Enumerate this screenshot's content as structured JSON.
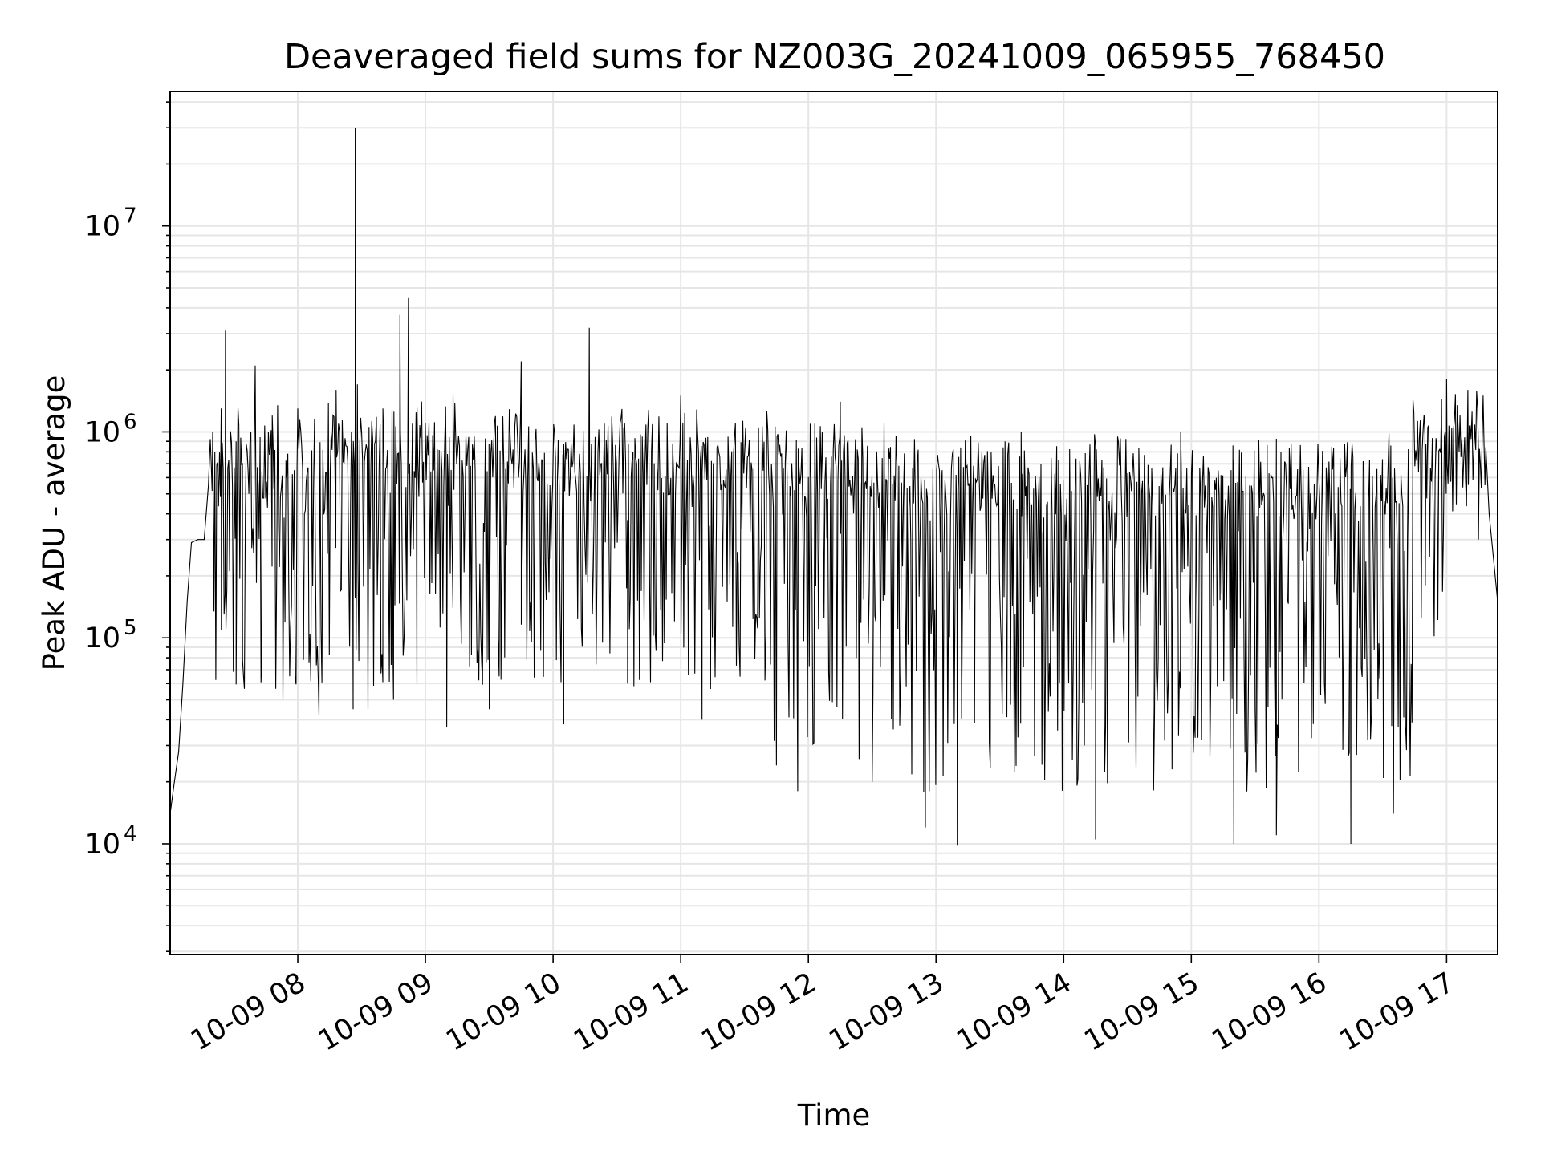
{
  "chart_data": {
    "type": "line",
    "title": "Deaveraged field sums for NZ003G_20241009_065955_768450",
    "xlabel": "Time",
    "ylabel": "Peak ADU - average",
    "yscale": "log",
    "xlim": [
      "2024-10-09 07:00",
      "2024-10-09 17:24"
    ],
    "ylim": [
      2900,
      45000000
    ],
    "grid": true,
    "line_color": "#000000",
    "grid_color": "#e6e6e6",
    "x_ticks": [
      {
        "t": "2024-10-09 08:00",
        "label": "10-09 08"
      },
      {
        "t": "2024-10-09 09:00",
        "label": "10-09 09"
      },
      {
        "t": "2024-10-09 10:00",
        "label": "10-09 10"
      },
      {
        "t": "2024-10-09 11:00",
        "label": "10-09 11"
      },
      {
        "t": "2024-10-09 12:00",
        "label": "10-09 12"
      },
      {
        "t": "2024-10-09 13:00",
        "label": "10-09 13"
      },
      {
        "t": "2024-10-09 14:00",
        "label": "10-09 14"
      },
      {
        "t": "2024-10-09 15:00",
        "label": "10-09 15"
      },
      {
        "t": "2024-10-09 16:00",
        "label": "10-09 16"
      },
      {
        "t": "2024-10-09 17:00",
        "label": "10-09 17"
      }
    ],
    "y_ticks": [
      {
        "value": 10000,
        "base": "10",
        "exp": "4"
      },
      {
        "value": 100000,
        "base": "10",
        "exp": "5"
      },
      {
        "value": 1000000,
        "base": "10",
        "exp": "6"
      },
      {
        "value": 10000000,
        "base": "10",
        "exp": "7"
      }
    ],
    "series": [
      {
        "points": [
          [
            "2024-10-09 07:00",
            14000
          ],
          [
            "2024-10-09 07:02",
            20000
          ],
          [
            "2024-10-09 07:04",
            28000
          ],
          [
            "2024-10-09 07:06",
            60000
          ],
          [
            "2024-10-09 07:08",
            150000
          ],
          [
            "2024-10-09 07:10",
            290000
          ],
          [
            "2024-10-09 07:13",
            300000
          ],
          [
            "2024-10-09 07:16",
            300000
          ],
          [
            "2024-10-09 07:18",
            550000
          ],
          [
            "2024-10-09 07:20",
            1000000
          ],
          [
            "2024-10-09 07:22",
            700000
          ],
          [
            "2024-10-09 07:24",
            1300000
          ],
          [
            "2024-10-09 07:26",
            3100000
          ],
          [
            "2024-10-09 07:28",
            600000
          ],
          [
            "2024-10-09 07:31",
            900000
          ],
          [
            "2024-10-09 07:34",
            700000
          ],
          [
            "2024-10-09 07:37",
            500000
          ],
          [
            "2024-10-09 07:40",
            2100000
          ],
          [
            "2024-10-09 07:43",
            75000
          ],
          [
            "2024-10-09 07:48",
            1200000
          ],
          [
            "2024-10-09 07:53",
            50000
          ],
          [
            "2024-10-09 08:00",
            1300000
          ],
          [
            "2024-10-09 08:10",
            42000
          ],
          [
            "2024-10-09 08:18",
            1600000
          ],
          [
            "2024-10-09 08:26",
            45000
          ],
          [
            "2024-10-09 08:27",
            30000000
          ],
          [
            "2024-10-09 08:28",
            1700000
          ],
          [
            "2024-10-09 08:33",
            45000
          ],
          [
            "2024-10-09 08:40",
            1300000
          ],
          [
            "2024-10-09 08:45",
            50000
          ],
          [
            "2024-10-09 08:48",
            3700000
          ],
          [
            "2024-10-09 08:52",
            4500000
          ],
          [
            "2024-10-09 08:56",
            60000
          ],
          [
            "2024-10-09 09:10",
            37000
          ],
          [
            "2024-10-09 09:13",
            1500000
          ],
          [
            "2024-10-09 09:30",
            45000
          ],
          [
            "2024-10-09 09:45",
            2200000
          ],
          [
            "2024-10-09 10:05",
            38000
          ],
          [
            "2024-10-09 10:17",
            3200000
          ],
          [
            "2024-10-09 10:35",
            60000
          ],
          [
            "2024-10-09 11:00",
            1500000
          ],
          [
            "2024-10-09 11:10",
            40000
          ],
          [
            "2024-10-09 11:45",
            24000
          ],
          [
            "2024-10-09 11:55",
            18000
          ],
          [
            "2024-10-09 12:15",
            1400000
          ],
          [
            "2024-10-09 12:30",
            20000
          ],
          [
            "2024-10-09 12:55",
            12000
          ],
          [
            "2024-10-09 13:10",
            9800
          ],
          [
            "2024-10-09 13:40",
            1000000
          ],
          [
            "2024-10-09 14:15",
            10500
          ],
          [
            "2024-10-09 14:55",
            1000000
          ],
          [
            "2024-10-09 15:20",
            10000
          ],
          [
            "2024-10-09 15:40",
            11000
          ],
          [
            "2024-10-09 16:15",
            10000
          ],
          [
            "2024-10-09 16:35",
            14000
          ],
          [
            "2024-10-09 16:50",
            180000
          ],
          [
            "2024-10-09 17:00",
            1800000
          ],
          [
            "2024-10-09 17:10",
            1600000
          ],
          [
            "2024-10-09 17:15",
            300000
          ],
          [
            "2024-10-09 17:20",
            400000
          ],
          [
            "2024-10-09 17:24",
            150000
          ]
        ]
      }
    ]
  }
}
